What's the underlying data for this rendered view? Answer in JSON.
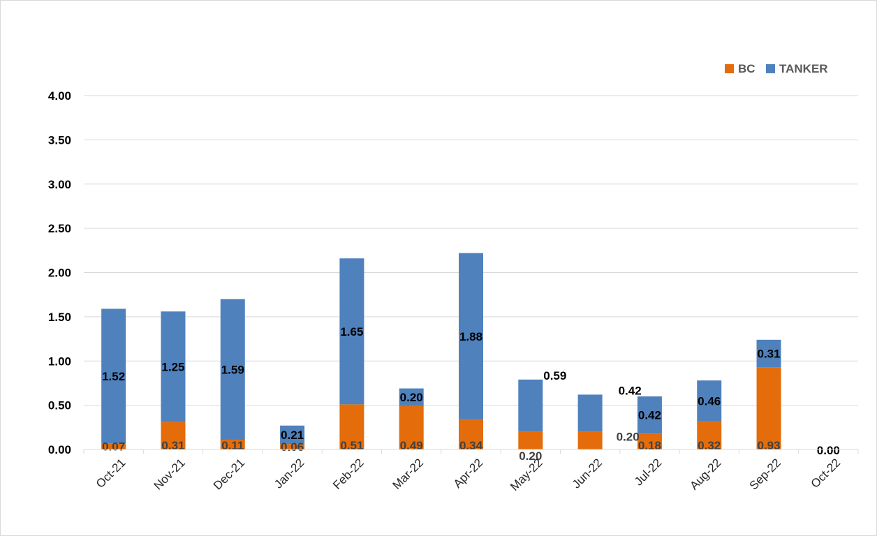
{
  "chart_data": {
    "type": "bar",
    "stacked": true,
    "categories": [
      "Oct-21",
      "Nov-21",
      "Dec-21",
      "Jan-22",
      "Feb-22",
      "Mar-22",
      "Apr-22",
      "May-22",
      "Jun-22",
      "Jul-22",
      "Aug-22",
      "Sep-22",
      "Oct-22"
    ],
    "series": [
      {
        "name": "BC",
        "color": "#e46c0a",
        "values": [
          0.07,
          0.31,
          0.11,
          0.06,
          0.51,
          0.49,
          0.34,
          0.2,
          0.2,
          0.18,
          0.32,
          0.93,
          0
        ],
        "labels": [
          "0.07",
          "0.31",
          "0.11",
          "0.06",
          "0.51",
          "0.49",
          "0.34",
          "0.20",
          "0.20",
          "0.18",
          "0.32",
          "0.93",
          "0.00"
        ]
      },
      {
        "name": "TANKER",
        "color": "#4f81bd",
        "values": [
          1.52,
          1.25,
          1.59,
          0.21,
          1.65,
          0.2,
          1.88,
          0.59,
          0.42,
          0.42,
          0.46,
          0.31,
          0
        ],
        "labels": [
          "1.52",
          "1.25",
          "1.59",
          "0.21",
          "1.65",
          "0.20",
          "1.88",
          "0.59",
          "0.42",
          "0.42",
          "0.46",
          "0.31",
          ""
        ]
      }
    ],
    "yticks": [
      "0.00",
      "0.50",
      "1.00",
      "1.50",
      "2.00",
      "2.50",
      "3.00",
      "3.50",
      "4.00"
    ],
    "ylim": [
      0,
      4
    ],
    "grid": true,
    "legend": "top-right"
  }
}
